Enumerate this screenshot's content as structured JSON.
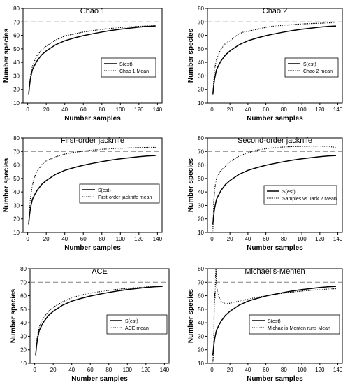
{
  "chart_data": [
    {
      "type": "line",
      "title": "Chao 1",
      "xlabel": "Number samples",
      "ylabel": "Number species",
      "xlim": [
        -5,
        145
      ],
      "ylim": [
        10,
        80
      ],
      "xticks": [
        0,
        20,
        40,
        60,
        80,
        100,
        120,
        140
      ],
      "yticks": [
        10,
        20,
        30,
        40,
        50,
        60,
        70,
        80
      ],
      "reference_line": {
        "y": 70,
        "style": "dashed",
        "color": "#808080"
      },
      "legend": {
        "position": "right",
        "entries": [
          "S(est)",
          "Chao 1 Mean"
        ]
      },
      "series": [
        {
          "name": "S(est)",
          "style": "solid",
          "color": "#000000",
          "x": [
            1,
            2,
            3,
            5,
            8,
            10,
            15,
            20,
            30,
            40,
            50,
            60,
            70,
            80,
            90,
            100,
            110,
            120,
            130,
            138
          ],
          "values": [
            16,
            23,
            28,
            34.5,
            38.5,
            41,
            45.5,
            48.5,
            53,
            56,
            58,
            59.8,
            61.2,
            62.5,
            63.6,
            64.6,
            65.4,
            66.1,
            66.7,
            67
          ]
        },
        {
          "name": "Chao 1 Mean",
          "style": "dotted",
          "color": "#000000",
          "x": [
            1,
            2,
            3,
            5,
            8,
            10,
            15,
            20,
            30,
            40,
            50,
            60,
            70,
            80,
            90,
            100,
            110,
            120,
            130,
            138
          ],
          "values": [
            16,
            24,
            30,
            37,
            42,
            45,
            49,
            52,
            56.5,
            59.5,
            61,
            62.5,
            63.5,
            64.5,
            65.2,
            65.8,
            66.3,
            66.7,
            67,
            67.2
          ]
        }
      ]
    },
    {
      "type": "line",
      "title": "Chao 2",
      "xlabel": "Number samples",
      "ylabel": "Number species",
      "xlim": [
        -5,
        145
      ],
      "ylim": [
        10,
        80
      ],
      "xticks": [
        0,
        20,
        40,
        60,
        80,
        100,
        120,
        140
      ],
      "yticks": [
        10,
        20,
        30,
        40,
        50,
        60,
        70,
        80
      ],
      "reference_line": {
        "y": 70,
        "style": "dashed",
        "color": "#808080"
      },
      "legend": {
        "position": "right",
        "entries": [
          "S(est)",
          "Chao 2 mean"
        ]
      },
      "series": [
        {
          "name": "S(est)",
          "style": "solid",
          "color": "#000000",
          "x": [
            1,
            2,
            3,
            5,
            8,
            10,
            15,
            20,
            30,
            40,
            50,
            60,
            70,
            80,
            90,
            100,
            110,
            120,
            130,
            138
          ],
          "values": [
            16,
            23,
            28,
            34.5,
            38.5,
            41,
            45.5,
            48.5,
            53,
            56,
            58,
            59.8,
            61.2,
            62.5,
            63.6,
            64.6,
            65.4,
            66.1,
            66.7,
            67
          ]
        },
        {
          "name": "Chao 2 mean",
          "style": "dotted",
          "color": "#000000",
          "x": [
            1,
            2,
            3,
            5,
            8,
            10,
            15,
            20,
            25,
            30,
            35,
            40,
            50,
            60,
            70,
            80,
            90,
            100,
            110,
            120,
            130,
            138
          ],
          "values": [
            16,
            27,
            35,
            42,
            47,
            50,
            54,
            56,
            58.5,
            61,
            62.5,
            63,
            64.5,
            66,
            67,
            67.5,
            68,
            68.5,
            68.8,
            69,
            69.3,
            69.5
          ]
        }
      ]
    },
    {
      "type": "line",
      "title": "First-order jacknife",
      "xlabel": "Number samples",
      "ylabel": "Number species",
      "xlim": [
        -5,
        145
      ],
      "ylim": [
        10,
        80
      ],
      "xticks": [
        0,
        20,
        40,
        60,
        80,
        100,
        120,
        140
      ],
      "yticks": [
        10,
        20,
        30,
        40,
        50,
        60,
        70,
        80
      ],
      "reference_line": {
        "y": 70,
        "style": "dashed",
        "color": "#808080"
      },
      "legend": {
        "position": "bottom-right",
        "entries": [
          "S(est)",
          "First-order jacknife mean"
        ]
      },
      "series": [
        {
          "name": "S(est)",
          "style": "solid",
          "color": "#000000",
          "x": [
            1,
            2,
            3,
            5,
            8,
            10,
            15,
            20,
            30,
            40,
            50,
            60,
            70,
            80,
            90,
            100,
            110,
            120,
            130,
            138
          ],
          "values": [
            16,
            23,
            28,
            34.5,
            38.5,
            41,
            45.5,
            48.5,
            53,
            56,
            58,
            59.8,
            61.2,
            62.5,
            63.6,
            64.6,
            65.4,
            66.1,
            66.7,
            67
          ]
        },
        {
          "name": "First-order jacknife mean",
          "style": "dotted",
          "color": "#000000",
          "x": [
            1,
            2,
            3,
            5,
            8,
            10,
            15,
            20,
            30,
            40,
            50,
            60,
            70,
            80,
            90,
            100,
            110,
            120,
            130,
            138
          ],
          "values": [
            16,
            28,
            36,
            45,
            52,
            55,
            60,
            63,
            66,
            68,
            69.3,
            70.2,
            71,
            71.6,
            72,
            72.3,
            72.6,
            72.8,
            73,
            73
          ]
        }
      ]
    },
    {
      "type": "line",
      "title": "Second-order jacknife",
      "xlabel": "Number samples",
      "ylabel": "Number species",
      "xlim": [
        -5,
        145
      ],
      "ylim": [
        10,
        80
      ],
      "xticks": [
        0,
        20,
        40,
        60,
        80,
        100,
        120,
        140
      ],
      "yticks": [
        10,
        20,
        30,
        40,
        50,
        60,
        70,
        80
      ],
      "reference_line": {
        "y": 70,
        "style": "dashed",
        "color": "#808080"
      },
      "legend": {
        "position": "bottom-right",
        "entries": [
          "S(est)",
          "Samples vs Jack 2 Mean"
        ]
      },
      "series": [
        {
          "name": "S(est)",
          "style": "solid",
          "color": "#000000",
          "x": [
            1,
            2,
            3,
            5,
            8,
            10,
            15,
            20,
            30,
            40,
            50,
            60,
            70,
            80,
            90,
            100,
            110,
            120,
            130,
            138
          ],
          "values": [
            16,
            23,
            28,
            34.5,
            38.5,
            41,
            45.5,
            48.5,
            53,
            56,
            58,
            59.8,
            61.2,
            62.5,
            63.6,
            64.6,
            65.4,
            66.1,
            66.7,
            67
          ]
        },
        {
          "name": "Samples vs Jack 2 Mean",
          "style": "dotted",
          "color": "#000000",
          "x": [
            1,
            2,
            3,
            5,
            8,
            10,
            15,
            20,
            30,
            40,
            50,
            60,
            70,
            80,
            90,
            100,
            110,
            120,
            130,
            138
          ],
          "values": [
            10,
            32,
            42,
            50,
            54,
            56,
            59,
            62.5,
            66.5,
            69,
            71,
            72,
            72.8,
            73.3,
            73.6,
            73.8,
            74,
            74,
            73.6,
            73
          ]
        }
      ]
    },
    {
      "type": "line",
      "title": "ACE",
      "xlabel": "Number samples",
      "ylabel": "Number species",
      "xlim": [
        -5,
        145
      ],
      "ylim": [
        10,
        80
      ],
      "xticks": [
        0,
        20,
        40,
        60,
        80,
        100,
        120,
        140
      ],
      "yticks": [
        10,
        20,
        30,
        40,
        50,
        60,
        70,
        80
      ],
      "reference_line": {
        "y": 70,
        "style": "dashed",
        "color": "#808080"
      },
      "legend": {
        "position": "bottom-right",
        "entries": [
          "S(est)",
          "ACE mean"
        ]
      },
      "series": [
        {
          "name": "S(est)",
          "style": "solid",
          "color": "#000000",
          "x": [
            1,
            2,
            3,
            5,
            8,
            10,
            15,
            20,
            30,
            40,
            50,
            60,
            70,
            80,
            90,
            100,
            110,
            120,
            130,
            138
          ],
          "values": [
            16,
            23,
            28,
            34.5,
            38.5,
            41,
            45.5,
            48.5,
            53,
            56,
            58,
            59.8,
            61.2,
            62.5,
            63.6,
            64.6,
            65.4,
            66.1,
            66.7,
            67
          ]
        },
        {
          "name": "ACE mean",
          "style": "dotted",
          "color": "#000000",
          "x": [
            1,
            2,
            3,
            5,
            8,
            10,
            15,
            20,
            30,
            40,
            50,
            60,
            70,
            80,
            90,
            100,
            110,
            120,
            130,
            138
          ],
          "values": [
            16,
            25,
            30.5,
            37,
            41.5,
            44,
            48.5,
            51.5,
            55.5,
            58.5,
            60.5,
            62,
            63,
            64,
            64.8,
            65.5,
            66,
            66.5,
            67,
            67.2
          ]
        }
      ]
    },
    {
      "type": "line",
      "title": "Michaelis-Menten",
      "xlabel": "Number samples",
      "ylabel": "Number species",
      "xlim": [
        -5,
        145
      ],
      "ylim": [
        10,
        80
      ],
      "xticks": [
        0,
        20,
        40,
        60,
        80,
        100,
        120,
        140
      ],
      "yticks": [
        10,
        20,
        30,
        40,
        50,
        60,
        70,
        80
      ],
      "reference_line": {
        "y": 70,
        "style": "dashed",
        "color": "#808080"
      },
      "legend": {
        "position": "bottom-right",
        "entries": [
          "S(est)",
          "Michaelis-Menten runs Mean"
        ]
      },
      "series": [
        {
          "name": "S(est)",
          "style": "solid",
          "color": "#000000",
          "x": [
            1,
            2,
            3,
            5,
            8,
            10,
            15,
            20,
            30,
            40,
            50,
            60,
            70,
            80,
            90,
            100,
            110,
            120,
            130,
            138
          ],
          "values": [
            16,
            23,
            28,
            34.5,
            38.5,
            41,
            45.5,
            48.5,
            53,
            56,
            58,
            59.8,
            61.2,
            62.5,
            63.6,
            64.6,
            65.4,
            66.1,
            66.7,
            67
          ]
        },
        {
          "name": "Michaelis-Menten runs Mean",
          "style": "dotted",
          "color": "#000000",
          "x": [
            1,
            2,
            2.5,
            3,
            3.5,
            4,
            4.5,
            5,
            6,
            8,
            10,
            15,
            20,
            30,
            40,
            50,
            60,
            70,
            80,
            90,
            100,
            110,
            120,
            130,
            138
          ],
          "values": [
            10,
            22,
            50,
            62,
            58,
            76,
            80,
            68,
            63,
            59,
            56,
            54,
            54.5,
            56,
            57.5,
            58.8,
            60,
            61,
            62,
            62.8,
            63.5,
            64,
            64.5,
            65,
            65.2
          ]
        }
      ]
    }
  ]
}
